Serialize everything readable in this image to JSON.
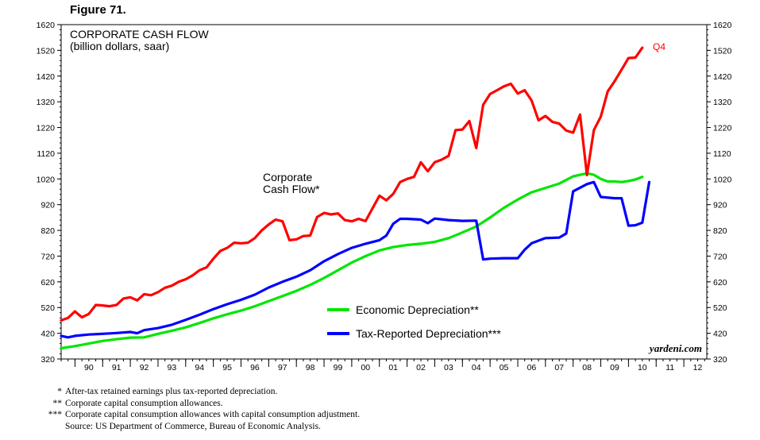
{
  "figure_label": "Figure 71.",
  "chart_data": {
    "type": "line",
    "title": "CORPORATE CASH FLOW",
    "subtitle": "(billion dollars, saar)",
    "ylim": [
      320,
      1620
    ],
    "yticks": [
      320,
      420,
      520,
      620,
      720,
      820,
      920,
      1020,
      1120,
      1220,
      1320,
      1420,
      1520,
      1620
    ],
    "x_start": 1989.5,
    "x_end": 2012.83,
    "xtick_labels": [
      "90",
      "91",
      "92",
      "93",
      "94",
      "95",
      "96",
      "97",
      "98",
      "99",
      "00",
      "01",
      "02",
      "03",
      "04",
      "05",
      "06",
      "07",
      "08",
      "09",
      "10",
      "11",
      "12"
    ],
    "grid": false,
    "legend_position": "bottom-center",
    "series": [
      {
        "key": "cash_flow",
        "color": "#ff0000",
        "values": [
          [
            1989.5,
            470
          ],
          [
            1989.75,
            480
          ],
          [
            1990.0,
            505
          ],
          [
            1990.25,
            482
          ],
          [
            1990.5,
            495
          ],
          [
            1990.75,
            530
          ],
          [
            1991.0,
            528
          ],
          [
            1991.25,
            525
          ],
          [
            1991.5,
            530
          ],
          [
            1991.75,
            555
          ],
          [
            1992.0,
            560
          ],
          [
            1992.25,
            548
          ],
          [
            1992.5,
            572
          ],
          [
            1992.75,
            568
          ],
          [
            1993.0,
            580
          ],
          [
            1993.25,
            597
          ],
          [
            1993.5,
            605
          ],
          [
            1993.75,
            620
          ],
          [
            1994.0,
            630
          ],
          [
            1994.25,
            645
          ],
          [
            1994.5,
            665
          ],
          [
            1994.75,
            676
          ],
          [
            1995.0,
            710
          ],
          [
            1995.25,
            740
          ],
          [
            1995.5,
            752
          ],
          [
            1995.75,
            772
          ],
          [
            1996.0,
            770
          ],
          [
            1996.25,
            772
          ],
          [
            1996.5,
            790
          ],
          [
            1996.75,
            820
          ],
          [
            1997.0,
            843
          ],
          [
            1997.25,
            862
          ],
          [
            1997.5,
            855
          ],
          [
            1997.75,
            782
          ],
          [
            1998.0,
            785
          ],
          [
            1998.25,
            798
          ],
          [
            1998.5,
            800
          ],
          [
            1998.75,
            872
          ],
          [
            1999.0,
            888
          ],
          [
            1999.25,
            882
          ],
          [
            1999.5,
            886
          ],
          [
            1999.75,
            860
          ],
          [
            2000.0,
            855
          ],
          [
            2000.25,
            865
          ],
          [
            2000.5,
            856
          ],
          [
            2000.75,
            905
          ],
          [
            2001.0,
            955
          ],
          [
            2001.25,
            937
          ],
          [
            2001.5,
            962
          ],
          [
            2001.75,
            1008
          ],
          [
            2002.0,
            1020
          ],
          [
            2002.25,
            1028
          ],
          [
            2002.5,
            1085
          ],
          [
            2002.75,
            1050
          ],
          [
            2003.0,
            1085
          ],
          [
            2003.25,
            1095
          ],
          [
            2003.5,
            1110
          ],
          [
            2003.75,
            1210
          ],
          [
            2004.0,
            1212
          ],
          [
            2004.25,
            1245
          ],
          [
            2004.5,
            1140
          ],
          [
            2004.75,
            1308
          ],
          [
            2005.0,
            1350
          ],
          [
            2005.25,
            1365
          ],
          [
            2005.5,
            1380
          ],
          [
            2005.75,
            1390
          ],
          [
            2006.0,
            1352
          ],
          [
            2006.25,
            1365
          ],
          [
            2006.5,
            1325
          ],
          [
            2006.75,
            1248
          ],
          [
            2007.0,
            1265
          ],
          [
            2007.25,
            1242
          ],
          [
            2007.5,
            1235
          ],
          [
            2007.75,
            1208
          ],
          [
            2008.0,
            1200
          ],
          [
            2008.25,
            1270
          ],
          [
            2008.5,
            1035
          ],
          [
            2008.75,
            1210
          ],
          [
            2009.0,
            1262
          ],
          [
            2009.25,
            1360
          ],
          [
            2009.5,
            1400
          ],
          [
            2009.75,
            1445
          ],
          [
            2010.0,
            1490
          ],
          [
            2010.25,
            1492
          ],
          [
            2010.5,
            1530
          ]
        ]
      },
      {
        "key": "economic_depreciation",
        "color": "#00e600",
        "values": [
          [
            1989.5,
            362
          ],
          [
            1990.0,
            370
          ],
          [
            1990.5,
            380
          ],
          [
            1991.0,
            390
          ],
          [
            1991.5,
            397
          ],
          [
            1992.0,
            403
          ],
          [
            1992.5,
            404
          ],
          [
            1993.0,
            418
          ],
          [
            1993.5,
            430
          ],
          [
            1994.0,
            443
          ],
          [
            1994.5,
            460
          ],
          [
            1995.0,
            478
          ],
          [
            1995.5,
            494
          ],
          [
            1996.0,
            508
          ],
          [
            1996.5,
            525
          ],
          [
            1997.0,
            545
          ],
          [
            1997.5,
            565
          ],
          [
            1998.0,
            585
          ],
          [
            1998.5,
            608
          ],
          [
            1999.0,
            635
          ],
          [
            1999.5,
            665
          ],
          [
            2000.0,
            695
          ],
          [
            2000.5,
            720
          ],
          [
            2001.0,
            742
          ],
          [
            2001.5,
            755
          ],
          [
            2002.0,
            763
          ],
          [
            2002.5,
            768
          ],
          [
            2003.0,
            775
          ],
          [
            2003.5,
            790
          ],
          [
            2004.0,
            812
          ],
          [
            2004.5,
            835
          ],
          [
            2005.0,
            870
          ],
          [
            2005.5,
            908
          ],
          [
            2006.0,
            940
          ],
          [
            2006.5,
            968
          ],
          [
            2007.0,
            985
          ],
          [
            2007.5,
            1002
          ],
          [
            2008.0,
            1030
          ],
          [
            2008.5,
            1042
          ],
          [
            2008.75,
            1036
          ],
          [
            2009.0,
            1020
          ],
          [
            2009.25,
            1010
          ],
          [
            2009.5,
            1010
          ],
          [
            2009.75,
            1008
          ],
          [
            2010.0,
            1012
          ],
          [
            2010.25,
            1018
          ],
          [
            2010.5,
            1028
          ]
        ]
      },
      {
        "key": "tax_reported_depreciation",
        "color": "#0000ff",
        "values": [
          [
            1989.5,
            410
          ],
          [
            1989.75,
            404
          ],
          [
            1990.0,
            410
          ],
          [
            1990.5,
            415
          ],
          [
            1991.0,
            418
          ],
          [
            1991.5,
            421
          ],
          [
            1992.0,
            425
          ],
          [
            1992.25,
            420
          ],
          [
            1992.5,
            432
          ],
          [
            1993.0,
            440
          ],
          [
            1993.5,
            453
          ],
          [
            1994.0,
            472
          ],
          [
            1994.5,
            492
          ],
          [
            1995.0,
            514
          ],
          [
            1995.5,
            533
          ],
          [
            1996.0,
            550
          ],
          [
            1996.5,
            570
          ],
          [
            1997.0,
            598
          ],
          [
            1997.5,
            620
          ],
          [
            1998.0,
            640
          ],
          [
            1998.5,
            665
          ],
          [
            1999.0,
            700
          ],
          [
            1999.5,
            728
          ],
          [
            2000.0,
            752
          ],
          [
            2000.5,
            768
          ],
          [
            2001.0,
            782
          ],
          [
            2001.25,
            800
          ],
          [
            2001.5,
            846
          ],
          [
            2001.75,
            865
          ],
          [
            2002.0,
            865
          ],
          [
            2002.5,
            862
          ],
          [
            2002.75,
            848
          ],
          [
            2003.0,
            866
          ],
          [
            2003.5,
            860
          ],
          [
            2004.0,
            857
          ],
          [
            2004.5,
            858
          ],
          [
            2004.75,
            707
          ],
          [
            2005.0,
            710
          ],
          [
            2005.5,
            712
          ],
          [
            2006.0,
            712
          ],
          [
            2006.25,
            745
          ],
          [
            2006.5,
            770
          ],
          [
            2007.0,
            790
          ],
          [
            2007.5,
            792
          ],
          [
            2007.75,
            808
          ],
          [
            2008.0,
            972
          ],
          [
            2008.5,
            1000
          ],
          [
            2008.75,
            1008
          ],
          [
            2009.0,
            950
          ],
          [
            2009.5,
            945
          ],
          [
            2009.75,
            945
          ],
          [
            2010.0,
            838
          ],
          [
            2010.25,
            840
          ],
          [
            2010.5,
            850
          ],
          [
            2010.75,
            1008
          ]
        ]
      }
    ],
    "annotations": {
      "series_label_line1": "Corporate",
      "series_label_line2": "Cash Flow*",
      "q4_label": "Q4",
      "watermark": "yardeni.com"
    },
    "legend": [
      {
        "label": "Economic Depreciation**",
        "color": "#00e600"
      },
      {
        "label": "Tax-Reported Depreciation***",
        "color": "#0000ff"
      }
    ]
  },
  "notes": [
    {
      "mark": "*",
      "text": "After-tax retained earnings plus tax-reported depreciation."
    },
    {
      "mark": "**",
      "text": "Corporate capital consumption allowances."
    },
    {
      "mark": "***",
      "text": "Corporate capital consumption allowances with capital consumption adjustment."
    },
    {
      "mark": "",
      "text": "Source: US Department of Commerce, Bureau of Economic Analysis."
    }
  ]
}
